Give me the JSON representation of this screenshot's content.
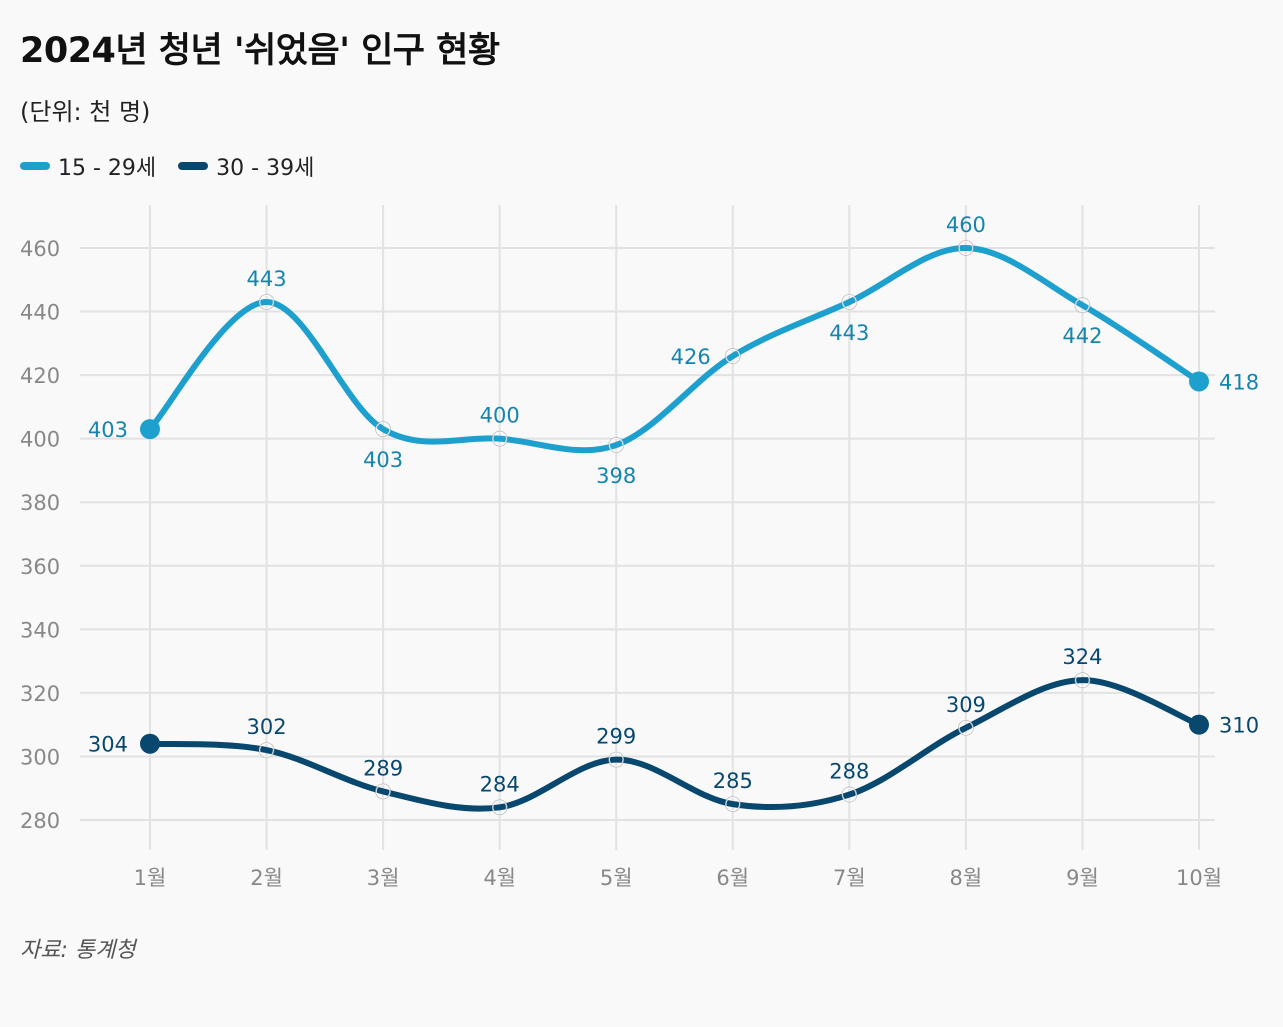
{
  "title": "2024년 청년 '쉬었음' 인구 현황",
  "subtitle": "(단위: 천 명)",
  "source": "자료: 통계청",
  "colors": {
    "series1": "#1ea0cf",
    "series1_label": "#1585ae",
    "series2": "#08476e",
    "series2_label": "#08476e",
    "grid": "#e2e2e2",
    "tick": "#888888"
  },
  "chart_data": {
    "type": "line",
    "title": "2024년 청년 '쉬었음' 인구 현황",
    "ylabel": "(단위: 천 명)",
    "xlabel": "",
    "categories": [
      "1월",
      "2월",
      "3월",
      "4월",
      "5월",
      "6월",
      "7월",
      "8월",
      "9월",
      "10월"
    ],
    "ylim": [
      270,
      470
    ],
    "yticks": [
      280,
      300,
      320,
      340,
      360,
      380,
      400,
      420,
      440,
      460
    ],
    "grid": true,
    "legend": "top-left",
    "series": [
      {
        "name": "15 - 29세",
        "values": [
          403,
          443,
          403,
          400,
          398,
          426,
          443,
          460,
          442,
          418
        ],
        "label_positions": [
          "left",
          "above",
          "below",
          "above",
          "below",
          "left",
          "below",
          "above",
          "below",
          "right"
        ]
      },
      {
        "name": "30 - 39세",
        "values": [
          304,
          302,
          289,
          284,
          299,
          285,
          288,
          309,
          324,
          310
        ],
        "label_positions": [
          "left",
          "above",
          "above",
          "above",
          "above",
          "above",
          "above",
          "above",
          "above",
          "right"
        ]
      }
    ]
  }
}
